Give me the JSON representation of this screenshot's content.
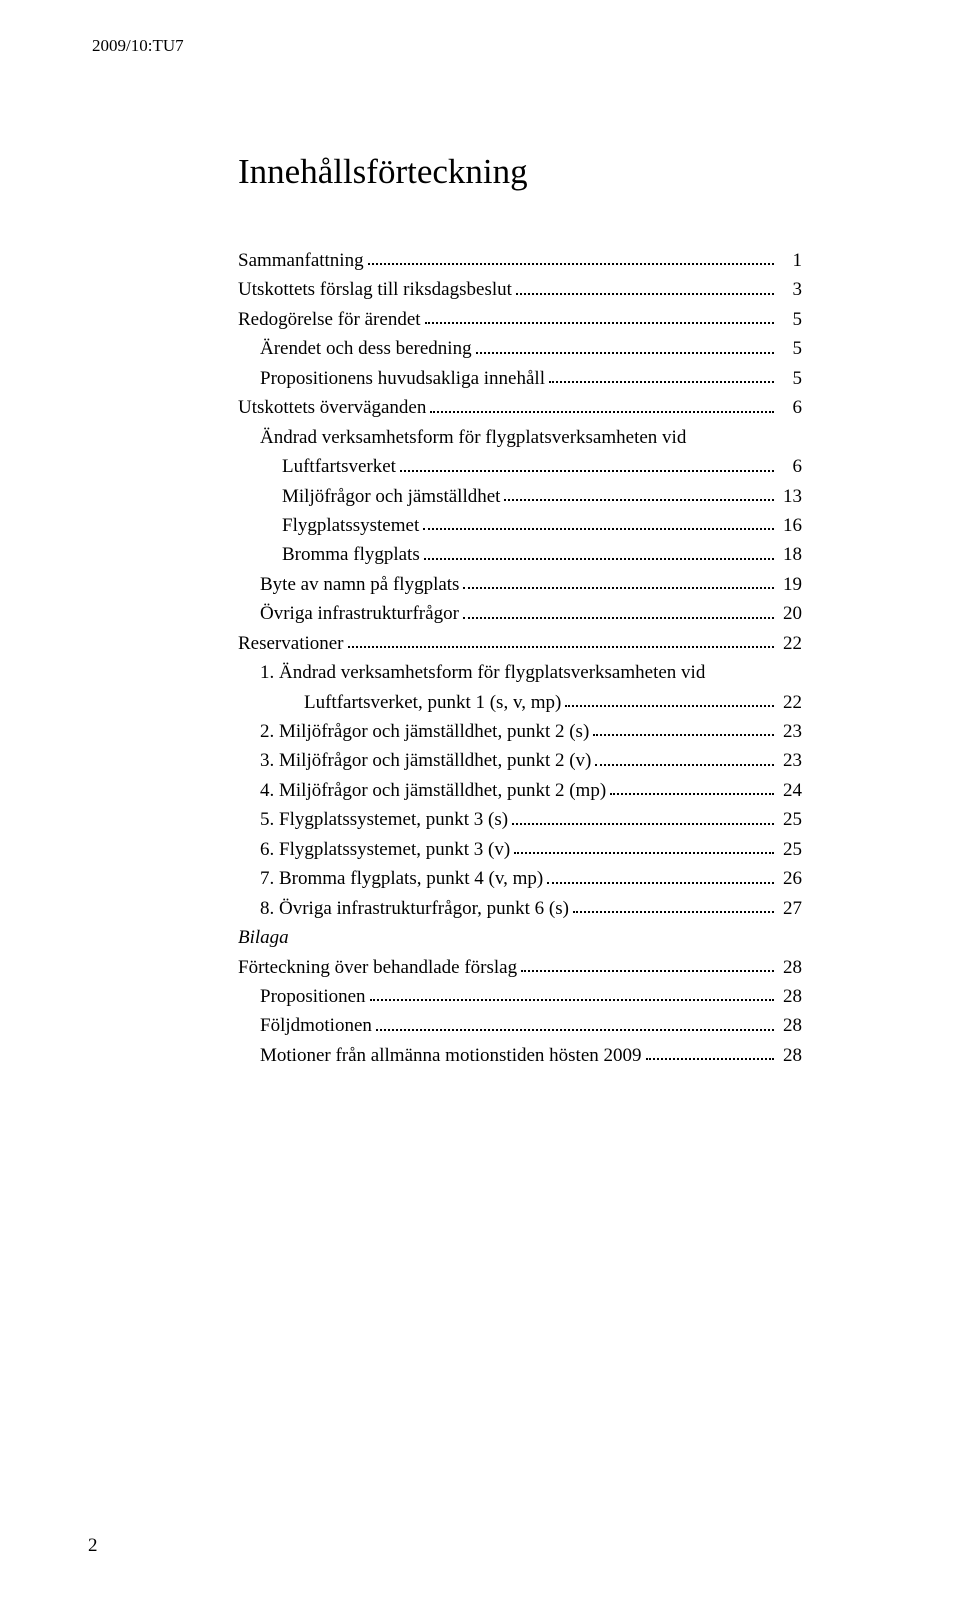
{
  "doc_id": "2009/10:TU7",
  "title": "Innehållsförteckning",
  "footer_page": "2",
  "toc": [
    {
      "label": "Sammanfattning",
      "page": "1",
      "indent": 0
    },
    {
      "label": "Utskottets förslag till riksdagsbeslut",
      "page": "3",
      "indent": 0
    },
    {
      "label": "Redogörelse för ärendet",
      "page": "5",
      "indent": 0
    },
    {
      "label": "Ärendet och dess beredning",
      "page": "5",
      "indent": 1
    },
    {
      "label": "Propositionens huvudsakliga innehåll",
      "page": "5",
      "indent": 1
    },
    {
      "label": "Utskottets överväganden",
      "page": "6",
      "indent": 0
    },
    {
      "label_a": "Ändrad verksamhetsform för flygplatsverksamheten vid",
      "label_b": "Luftfartsverket",
      "page": "6",
      "indent": 1,
      "wrap": true
    },
    {
      "label": "Miljöfrågor och jämställdhet",
      "page": "13",
      "indent": 2
    },
    {
      "label": "Flygplatssystemet",
      "page": "16",
      "indent": 2
    },
    {
      "label": "Bromma flygplats",
      "page": "18",
      "indent": 2
    },
    {
      "label": "Byte av namn på flygplats",
      "page": "19",
      "indent": 1
    },
    {
      "label": "Övriga infrastrukturfrågor",
      "page": "20",
      "indent": 1
    },
    {
      "label": "Reservationer",
      "page": "22",
      "indent": 0
    },
    {
      "label_a": "1. Ändrad verksamhetsform för flygplatsverksamheten vid",
      "label_b": "Luftfartsverket, punkt 1 (s, v, mp)",
      "page": "22",
      "indent": 1,
      "wrap": true,
      "wrap_indent": 3
    },
    {
      "label": "2. Miljöfrågor och jämställdhet, punkt 2 (s)",
      "page": "23",
      "indent": 1
    },
    {
      "label": "3. Miljöfrågor och jämställdhet, punkt 2 (v)",
      "page": "23",
      "indent": 1
    },
    {
      "label": "4. Miljöfrågor och jämställdhet, punkt 2 (mp)",
      "page": "24",
      "indent": 1
    },
    {
      "label": "5. Flygplatssystemet, punkt 3 (s)",
      "page": "25",
      "indent": 1
    },
    {
      "label": "6. Flygplatssystemet, punkt 3 (v)",
      "page": "25",
      "indent": 1
    },
    {
      "label": "7. Bromma flygplats, punkt 4 (v, mp)",
      "page": "26",
      "indent": 1
    },
    {
      "label": "8. Övriga infrastrukturfrågor, punkt 6 (s)",
      "page": "27",
      "indent": 1
    },
    {
      "label": "Bilaga",
      "indent": 0,
      "italic": true,
      "no_page": true
    },
    {
      "label": "Förteckning över behandlade förslag",
      "page": "28",
      "indent": 0
    },
    {
      "label": "Propositionen",
      "page": "28",
      "indent": 1
    },
    {
      "label": "Följdmotionen",
      "page": "28",
      "indent": 1
    },
    {
      "label": "Motioner från allmänna motionstiden hösten 2009",
      "page": "28",
      "indent": 1
    }
  ]
}
